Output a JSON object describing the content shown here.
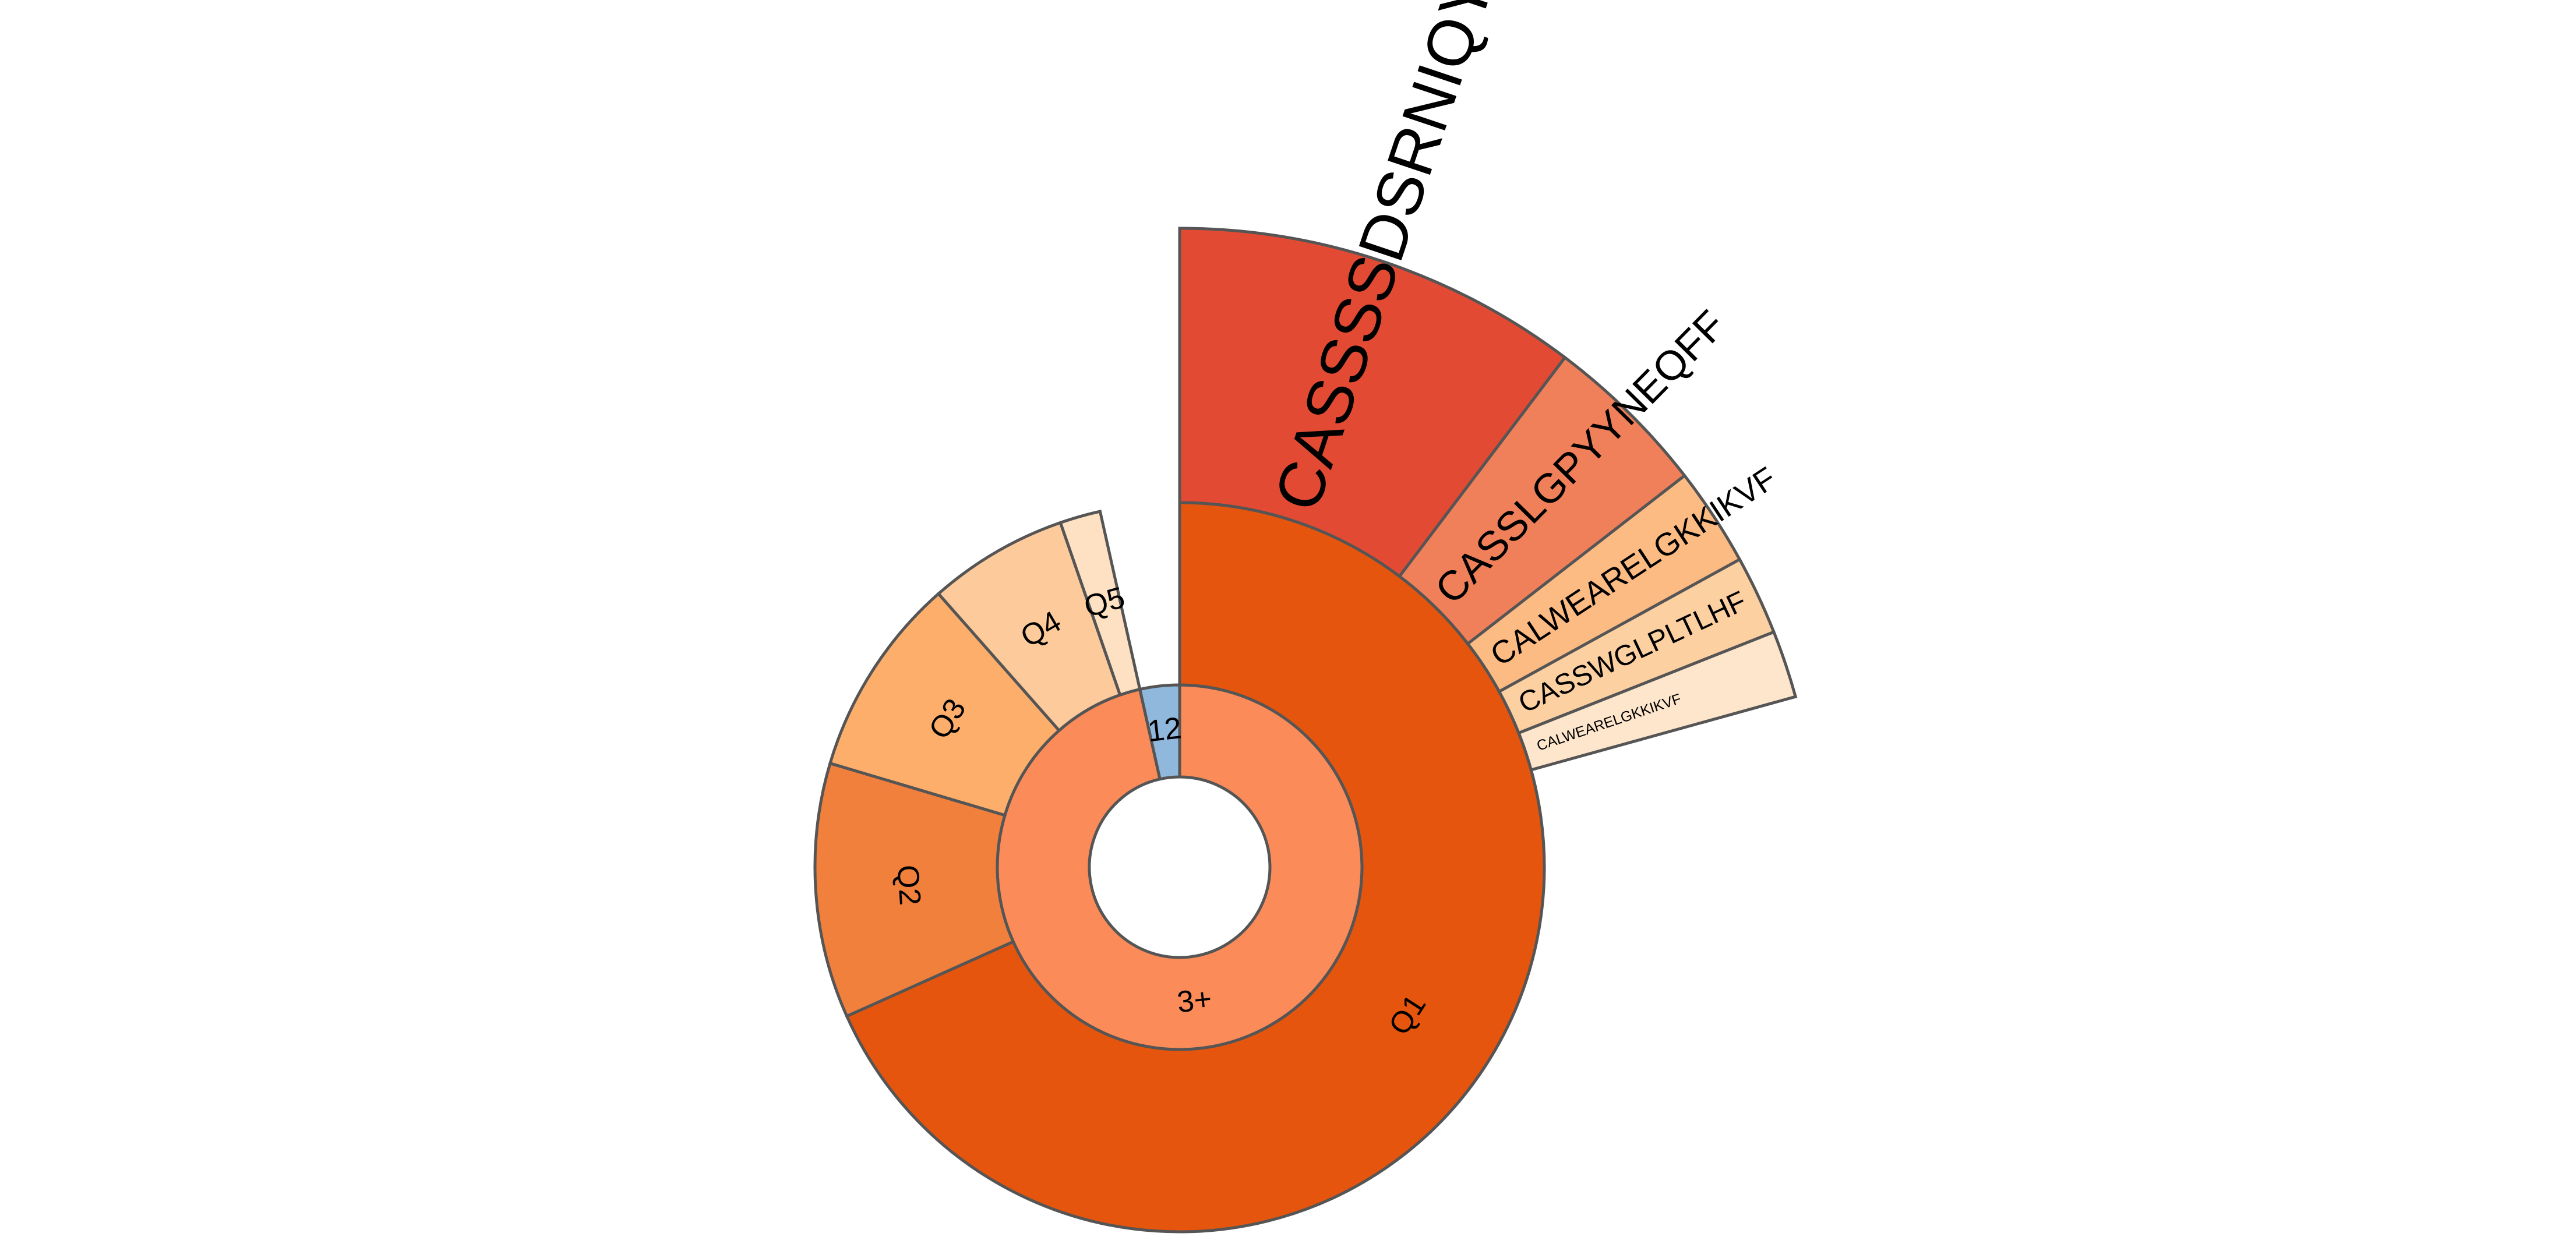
{
  "chart_data": {
    "type": "sunburst",
    "nodes": [
      {
        "label": "3+",
        "value": 96.5,
        "color": "#fb8b58",
        "children": [
          {
            "label": "Q1",
            "value": 68.3,
            "color": "#e6550d",
            "children": [
              {
                "label": "CASSSSDSRNIQYF",
                "value": 10.3,
                "color": "#e34a33"
              },
              {
                "label": "CASSLGPYYNEQFF",
                "value": 4.2,
                "color": "#f0805a"
              },
              {
                "label": "CALWEARELGKKIKVF",
                "value": 2.5,
                "color": "#fdbb84"
              },
              {
                "label": "CASSWGLPLTLHF",
                "value": 2.0,
                "color": "#fdd0a2"
              },
              {
                "label": "CALWEARELGKKIKVF",
                "value": 1.7,
                "color": "#fee6cc"
              }
            ]
          },
          {
            "label": "Q2",
            "value": 11.3,
            "color": "#f0803c"
          },
          {
            "label": "Q3",
            "value": 8.9,
            "color": "#fdae6b"
          },
          {
            "label": "Q4",
            "value": 6.2,
            "color": "#fdca9b"
          },
          {
            "label": "Q5",
            "value": 1.8,
            "color": "#fee1c2"
          }
        ]
      },
      {
        "label": "12",
        "value": 3.5,
        "color": "#8fb8dc"
      }
    ]
  }
}
